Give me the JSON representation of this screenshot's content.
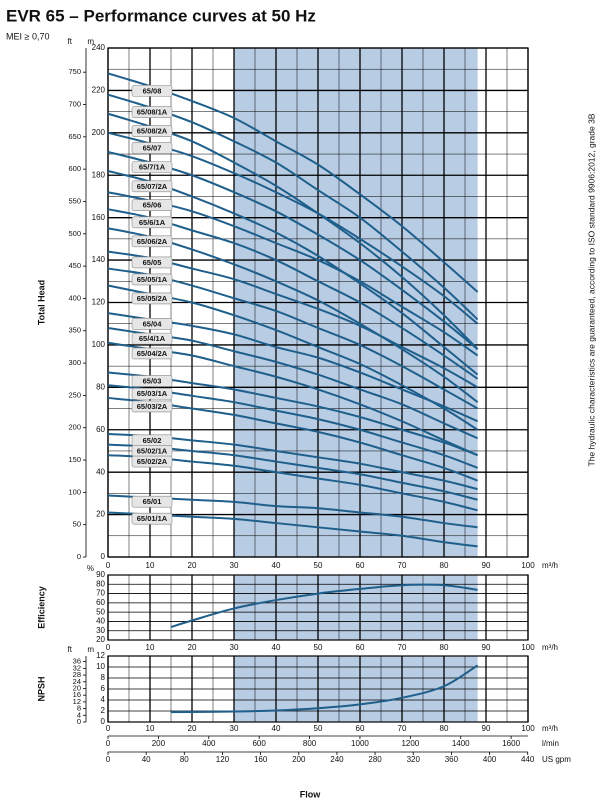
{
  "chart_data": [
    {
      "type": "line",
      "title": "EVR 65 – Performance curves at 50 Hz",
      "subtitle": "MEI ≥ 0,70",
      "ylabel": "Total Head",
      "yunit": "m",
      "y2unit": "ft",
      "xunit": "m³/h",
      "note": "The hydraulic characteristics are guaranteed, according to ISO standard 9906:2012, grade 3B",
      "grid": true,
      "minor_grid": true,
      "highlight": {
        "xlim": [
          30,
          88
        ],
        "color": "#b8cce4"
      },
      "xlim": [
        0,
        100
      ],
      "xticks": [
        0,
        10,
        20,
        30,
        40,
        50,
        60,
        70,
        80,
        90,
        100
      ],
      "ylim": [
        0,
        240
      ],
      "yticks": [
        0,
        20,
        40,
        60,
        80,
        100,
        120,
        140,
        160,
        180,
        200,
        220,
        240
      ],
      "y2lim": [
        0,
        787.4
      ],
      "y2ticks": [
        0,
        50,
        100,
        150,
        200,
        250,
        300,
        350,
        400,
        450,
        500,
        550,
        600,
        650,
        700,
        750
      ],
      "x": [
        0,
        10,
        20,
        30,
        40,
        50,
        60,
        70,
        80,
        88
      ],
      "series": [
        {
          "name": "65/08",
          "color": "#1f5f8b",
          "values": [
            228,
            222,
            215,
            207,
            196,
            185,
            171,
            156,
            139,
            125
          ]
        },
        {
          "name": "65/08/1A",
          "color": "#1f5f8b",
          "values": [
            218,
            212,
            205,
            196,
            186,
            173,
            160,
            144,
            127,
            112
          ]
        },
        {
          "name": "65/08/2A",
          "color": "#1f5f8b",
          "values": [
            209,
            203,
            196,
            186,
            175,
            162,
            148,
            132,
            114,
            98
          ]
        },
        {
          "name": "65/07",
          "color": "#1f5f8b",
          "values": [
            200,
            195,
            189,
            181,
            172,
            162,
            150,
            137,
            123,
            110
          ]
        },
        {
          "name": "65/7/1A",
          "color": "#1f5f8b",
          "values": [
            191,
            186,
            180,
            172,
            163,
            152,
            140,
            126,
            111,
            98
          ]
        },
        {
          "name": "65/07/2A",
          "color": "#1f5f8b",
          "values": [
            182,
            177,
            170,
            162,
            153,
            142,
            129,
            115,
            99,
            86
          ]
        },
        {
          "name": "65/06",
          "color": "#1f5f8b",
          "values": [
            172,
            168,
            163,
            156,
            148,
            140,
            130,
            118,
            106,
            95
          ]
        },
        {
          "name": "65/6/1A",
          "color": "#1f5f8b",
          "values": [
            164,
            160,
            154,
            148,
            140,
            130,
            120,
            108,
            95,
            84
          ]
        },
        {
          "name": "65/06/2A",
          "color": "#1f5f8b",
          "values": [
            155,
            151,
            145,
            138,
            130,
            121,
            110,
            98,
            85,
            73
          ]
        },
        {
          "name": "65/05",
          "color": "#1f5f8b",
          "values": [
            144,
            141,
            136,
            131,
            124,
            117,
            109,
            99,
            89,
            80
          ]
        },
        {
          "name": "65/05/1A",
          "color": "#1f5f8b",
          "values": [
            136,
            133,
            128,
            122,
            116,
            108,
            100,
            90,
            79,
            70
          ]
        },
        {
          "name": "65/05/2A",
          "color": "#1f5f8b",
          "values": [
            128,
            124,
            120,
            114,
            107,
            99,
            91,
            81,
            70,
            60
          ]
        },
        {
          "name": "65/04",
          "color": "#1f5f8b",
          "values": [
            115,
            112,
            109,
            105,
            99,
            94,
            87,
            79,
            71,
            64
          ]
        },
        {
          "name": "65/4/1A",
          "color": "#1f5f8b",
          "values": [
            108,
            105,
            102,
            97,
            92,
            86,
            79,
            72,
            63,
            56
          ]
        },
        {
          "name": "65/04/2A",
          "color": "#1f5f8b",
          "values": [
            101,
            98,
            95,
            90,
            85,
            79,
            72,
            64,
            55,
            48
          ]
        },
        {
          "name": "65/03",
          "color": "#1f5f8b",
          "values": [
            87,
            85,
            82,
            79,
            75,
            71,
            66,
            60,
            54,
            48
          ]
        },
        {
          "name": "65/03/1A",
          "color": "#1f5f8b",
          "values": [
            81,
            79,
            76,
            73,
            69,
            65,
            60,
            54,
            48,
            42
          ]
        },
        {
          "name": "65/03/2A",
          "color": "#1f5f8b",
          "values": [
            75,
            73,
            70,
            67,
            63,
            59,
            54,
            48,
            42,
            36
          ]
        },
        {
          "name": "65/02",
          "color": "#1f5f8b",
          "values": [
            58,
            57,
            55,
            53,
            50,
            47,
            44,
            40,
            36,
            32
          ]
        },
        {
          "name": "65/02/1A",
          "color": "#1f5f8b",
          "values": [
            53,
            52,
            50,
            48,
            45,
            42,
            39,
            35,
            31,
            27
          ]
        },
        {
          "name": "65/02/2A",
          "color": "#1f5f8b",
          "values": [
            48,
            47,
            45,
            43,
            40,
            37,
            34,
            30,
            26,
            22
          ]
        },
        {
          "name": "65/01",
          "color": "#1f5f8b",
          "values": [
            29,
            28,
            27,
            26,
            24,
            23,
            21,
            19,
            16,
            14
          ]
        },
        {
          "name": "65/01/1A",
          "color": "#1f5f8b",
          "values": [
            21,
            20,
            19,
            18,
            16,
            14,
            12,
            10,
            7,
            5
          ]
        }
      ]
    },
    {
      "type": "line",
      "ylabel": "Efficiency",
      "yunit": "%",
      "xunit": "m³/h",
      "grid": true,
      "highlight": {
        "xlim": [
          30,
          88
        ],
        "color": "#b8cce4"
      },
      "xlim": [
        0,
        100
      ],
      "xticks": [
        0,
        10,
        20,
        30,
        40,
        50,
        60,
        70,
        80,
        90,
        100
      ],
      "ylim": [
        20,
        90
      ],
      "yticks": [
        20,
        30,
        40,
        50,
        60,
        70,
        80,
        90
      ],
      "x": [
        15,
        20,
        30,
        40,
        50,
        60,
        70,
        80,
        88
      ],
      "series": [
        {
          "color": "#1f5f8b",
          "values": [
            34,
            41,
            54,
            63,
            70,
            75,
            79,
            79,
            74
          ]
        }
      ]
    },
    {
      "type": "line",
      "ylabel": "NPSH",
      "yunit": "m",
      "y2unit": "ft",
      "xunit": "m³/h",
      "xlabel": "Flow",
      "grid": true,
      "highlight": {
        "xlim": [
          30,
          88
        ],
        "color": "#b8cce4"
      },
      "xlim": [
        0,
        100
      ],
      "xticks": [
        0,
        10,
        20,
        30,
        40,
        50,
        60,
        70,
        80,
        90,
        100
      ],
      "ylim": [
        0,
        12
      ],
      "yticks": [
        0,
        2,
        4,
        6,
        8,
        10,
        12
      ],
      "y2lim": [
        0,
        39.37
      ],
      "y2ticks": [
        0,
        4,
        8,
        12,
        16,
        20,
        24,
        28,
        32,
        36
      ],
      "x": [
        15,
        30,
        40,
        50,
        60,
        70,
        80,
        88
      ],
      "series": [
        {
          "color": "#1f5f8b",
          "values": [
            1.8,
            1.9,
            2.1,
            2.5,
            3.2,
            4.4,
            6.5,
            10.3
          ]
        }
      ],
      "extra_x_axes": [
        {
          "unit": "l/min",
          "lim": [
            0,
            1667
          ],
          "ticks": [
            0,
            200,
            400,
            600,
            800,
            1000,
            1200,
            1400,
            1600
          ]
        },
        {
          "unit": "US gpm",
          "lim": [
            0,
            440.3
          ],
          "ticks": [
            0,
            40,
            80,
            120,
            160,
            200,
            240,
            280,
            320,
            360,
            400,
            440
          ]
        }
      ]
    }
  ]
}
